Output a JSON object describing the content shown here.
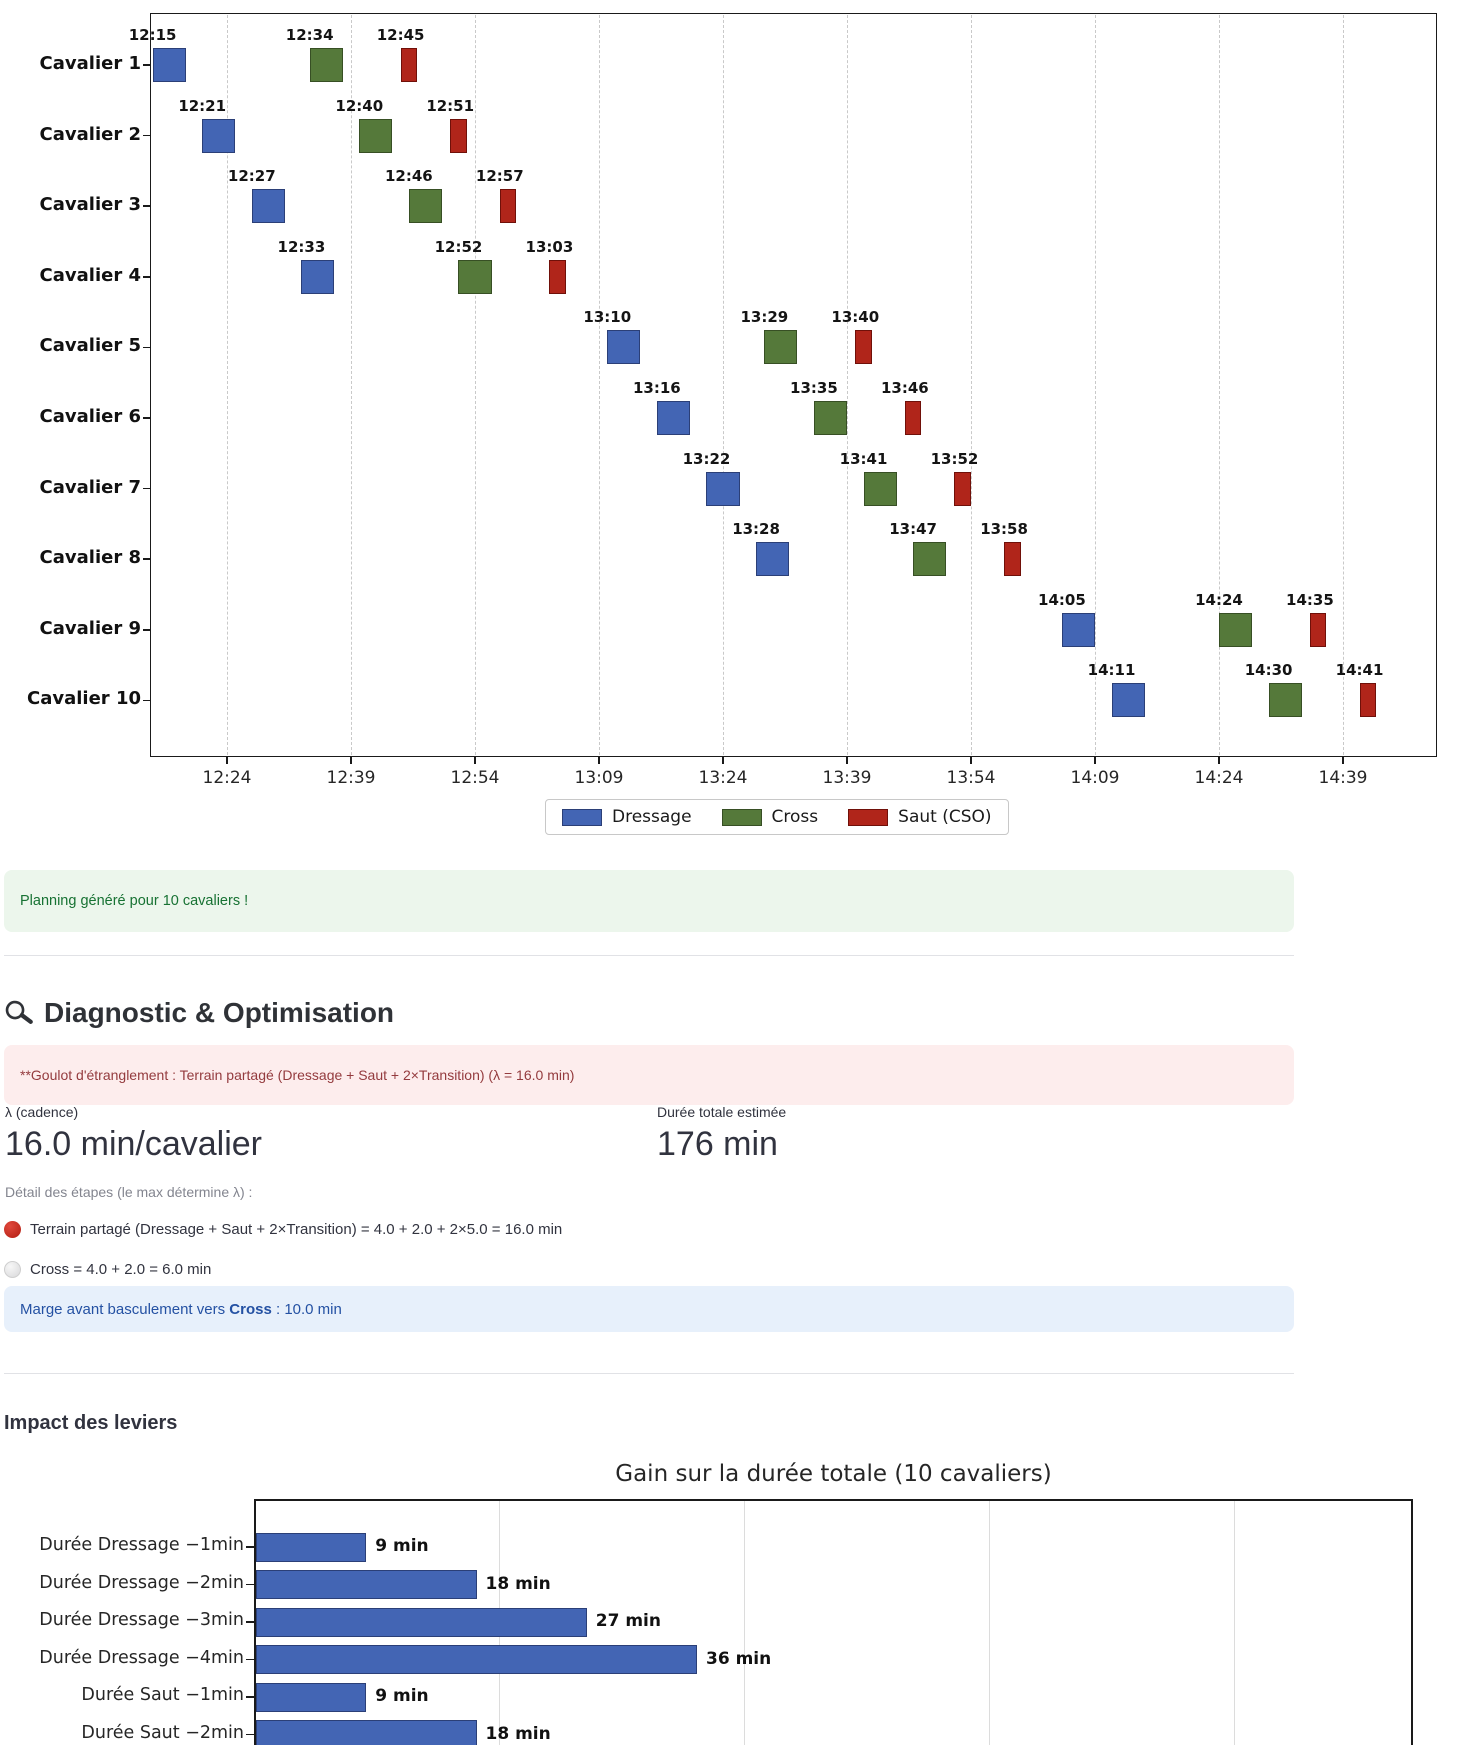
{
  "alerts": {
    "success": "Planning généré pour 10 cavaliers !",
    "error": "**Goulot d'étranglement : Terrain partagé (Dressage + Saut + 2×Transition) (λ = 16.0 min)",
    "info_prefix": "Marge avant basculement vers ",
    "info_bold": "Cross",
    "info_suffix": " : 10.0 min"
  },
  "diagnostic": {
    "heading": "Diagnostic & Optimisation",
    "metrics": [
      {
        "label": "λ (cadence)",
        "value": "16.0 min/cavalier"
      },
      {
        "label": "Durée totale estimée",
        "value": "176 min"
      }
    ],
    "caption": "Détail des étapes (le max détermine λ) :",
    "steps": [
      {
        "icon": "red-circle",
        "text": "Terrain partagé (Dressage + Saut + 2×Transition) = 4.0 + 2.0 + 2×5.0 = 16.0 min"
      },
      {
        "icon": "white-circle",
        "text": "Cross = 4.0 + 2.0 = 6.0 min"
      }
    ]
  },
  "levers": {
    "heading": "Impact des leviers"
  },
  "chart_data": [
    {
      "type": "gantt",
      "rows": [
        "Cavalier 1",
        "Cavalier 2",
        "Cavalier 3",
        "Cavalier 4",
        "Cavalier 5",
        "Cavalier 6",
        "Cavalier 7",
        "Cavalier 8",
        "Cavalier 9",
        "Cavalier 10"
      ],
      "series": [
        {
          "name": "Dressage",
          "color": "#4365b4",
          "edge": "#2b3f77",
          "duration_min": 4,
          "starts": [
            "12:15",
            "12:21",
            "12:27",
            "12:33",
            "13:10",
            "13:16",
            "13:22",
            "13:28",
            "14:05",
            "14:11"
          ]
        },
        {
          "name": "Cross",
          "color": "#55793a",
          "edge": "#374f24",
          "duration_min": 4,
          "starts": [
            "12:34",
            "12:40",
            "12:46",
            "12:52",
            "13:29",
            "13:35",
            "13:41",
            "13:47",
            "14:24",
            "14:30"
          ]
        },
        {
          "name": "Saut (CSO)",
          "color": "#b0251a",
          "edge": "#701009",
          "duration_min": 2,
          "starts": [
            "12:45",
            "12:51",
            "12:57",
            "13:03",
            "13:40",
            "13:46",
            "13:52",
            "13:58",
            "14:35",
            "14:41"
          ]
        }
      ],
      "x_ticks": [
        "12:24",
        "12:39",
        "12:54",
        "13:09",
        "13:24",
        "13:39",
        "13:54",
        "14:09",
        "14:24",
        "14:39"
      ],
      "legend_position": "bottom-center",
      "grid": "vertical-dashed"
    },
    {
      "type": "bar",
      "orientation": "horizontal",
      "title": "Gain sur la durée totale (10 cavaliers)",
      "categories": [
        "Durée Dressage −1min",
        "Durée Dressage −2min",
        "Durée Dressage −3min",
        "Durée Dressage −4min",
        "Durée Saut −1min",
        "Durée Saut −2min"
      ],
      "values": [
        9,
        18,
        27,
        36,
        9,
        18
      ],
      "value_labels": [
        "9 min",
        "18 min",
        "27 min",
        "36 min",
        "9 min",
        "18 min"
      ],
      "bar_color": "#4365b4",
      "bar_edge": "#2b3f77",
      "xlim": [
        0,
        94.5
      ],
      "x_gridlines": [
        20,
        40,
        60,
        80
      ],
      "ylabel": "",
      "xlabel": ""
    }
  ]
}
